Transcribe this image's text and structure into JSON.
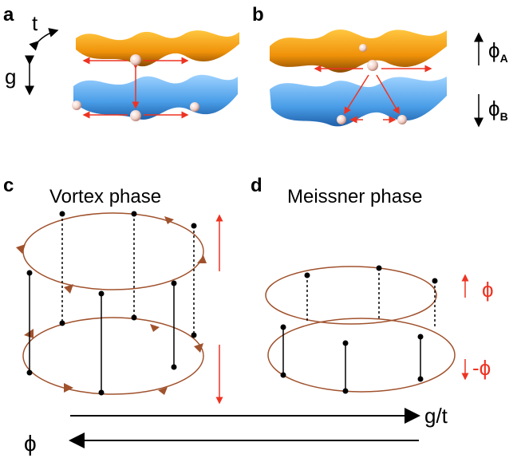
{
  "panel_a": {
    "label": "a",
    "hop_label": "t",
    "gap_label": "g"
  },
  "panel_b": {
    "label": "b",
    "top_flux": {
      "symbol": "ϕ",
      "subscript": "A"
    },
    "bottom_flux": {
      "symbol": "ϕ",
      "subscript": "B"
    }
  },
  "panel_c": {
    "label": "c",
    "title": "Vortex phase"
  },
  "panel_d": {
    "label": "d",
    "title": "Meissner phase",
    "top_flux": "ϕ",
    "bottom_flux": "-ϕ"
  },
  "axis": {
    "right_label": "g/t",
    "left_label": "ϕ"
  }
}
